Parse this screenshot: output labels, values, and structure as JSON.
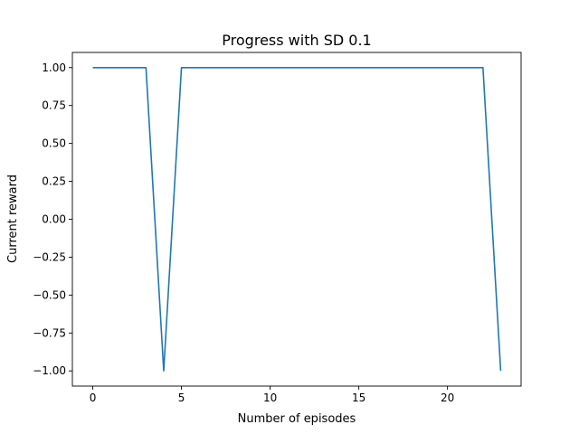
{
  "chart_data": {
    "type": "line",
    "title": "Progress with SD 0.1",
    "xlabel": "Number of episodes",
    "ylabel": "Current reward",
    "xlim": [
      -1.15,
      24.15
    ],
    "ylim": [
      -1.1,
      1.1
    ],
    "x_ticks": [
      0,
      5,
      10,
      15,
      20
    ],
    "x_tick_labels": [
      "0",
      "5",
      "10",
      "15",
      "20"
    ],
    "y_ticks": [
      1.0,
      0.75,
      0.5,
      0.25,
      0.0,
      -0.25,
      -0.5,
      -0.75,
      -1.0
    ],
    "y_tick_labels": [
      "1.00",
      "0.75",
      "0.50",
      "0.25",
      "0.00",
      "−0.25",
      "−0.50",
      "−0.75",
      "−1.00"
    ],
    "grid": false,
    "series": [
      {
        "color": "#1f77b4",
        "x": [
          0,
          1,
          2,
          3,
          4,
          5,
          6,
          7,
          8,
          9,
          10,
          11,
          12,
          13,
          14,
          15,
          16,
          17,
          18,
          19,
          20,
          21,
          22,
          23
        ],
        "values": [
          1,
          1,
          1,
          1,
          -1,
          1,
          1,
          1,
          1,
          1,
          1,
          1,
          1,
          1,
          1,
          1,
          1,
          1,
          1,
          1,
          1,
          1,
          1,
          -1
        ]
      }
    ]
  }
}
